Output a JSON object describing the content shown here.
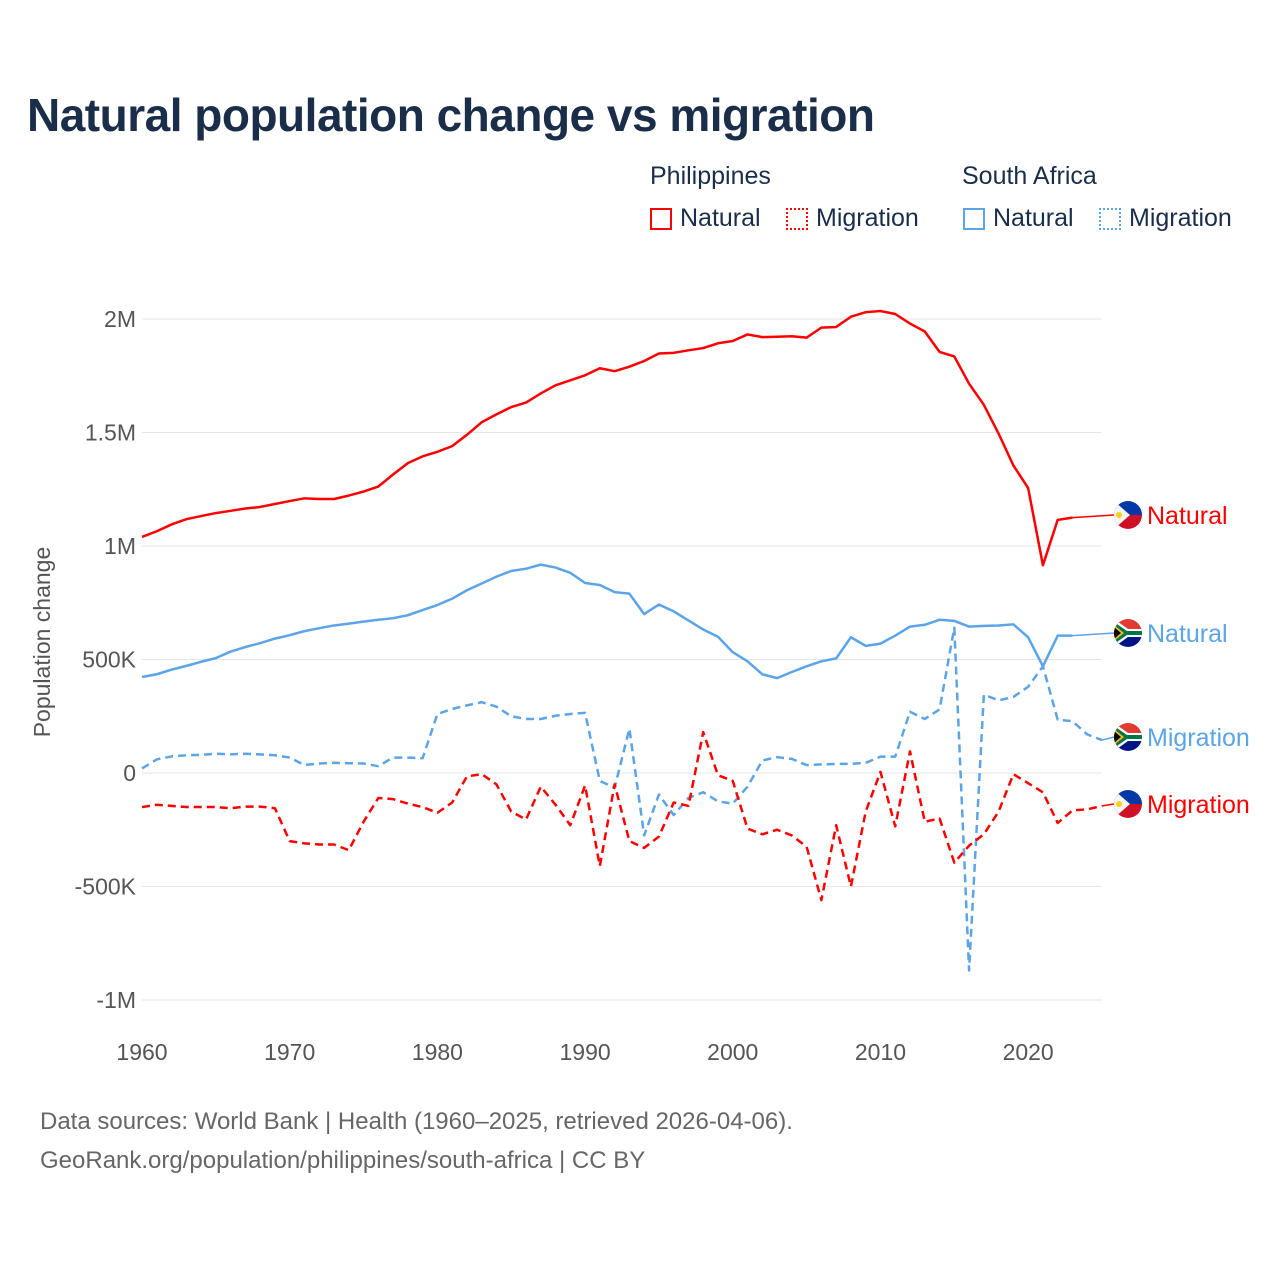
{
  "title": "Natural population change vs migration",
  "legend": {
    "groups": [
      {
        "name": "Philippines",
        "color": "#ff0000"
      },
      {
        "name": "South Africa",
        "color": "#5ba4e8"
      }
    ],
    "items": [
      "Natural",
      "Migration"
    ]
  },
  "footer": {
    "line1": "Data sources: World Bank | Health (1960–2025, retrieved 2026-04-06).",
    "line2": "GeoRank.org/population/philippines/south-africa | CC BY"
  },
  "chart_data": {
    "type": "line",
    "title": "Natural population change vs migration",
    "xlabel": "",
    "ylabel": "Population change",
    "xlim": [
      1960,
      2025
    ],
    "ylim": [
      -1000000,
      2000000
    ],
    "yticks": [
      {
        "v": 2000000,
        "l": "2M"
      },
      {
        "v": 1500000,
        "l": "1.5M"
      },
      {
        "v": 1000000,
        "l": "1M"
      },
      {
        "v": 500000,
        "l": "500K"
      },
      {
        "v": 0,
        "l": "0"
      },
      {
        "v": -500000,
        "l": "-500K"
      },
      {
        "v": -1000000,
        "l": "-1M"
      }
    ],
    "xticks": [
      1960,
      1970,
      1980,
      1990,
      2000,
      2010,
      2020
    ],
    "grid": true,
    "series": [
      {
        "name": "Philippines Natural",
        "label": "Natural",
        "color": "#ff0000",
        "dash": false,
        "start": 1960,
        "flag": "ph",
        "values_k": [
          1040,
          1065,
          1095,
          1118,
          1132,
          1145,
          1155,
          1165,
          1172,
          1185,
          1198,
          1210,
          1207,
          1207,
          1222,
          1240,
          1262,
          1315,
          1365,
          1395,
          1415,
          1440,
          1490,
          1545,
          1580,
          1612,
          1632,
          1672,
          1708,
          1730,
          1752,
          1783,
          1770,
          1790,
          1815,
          1848,
          1851,
          1862,
          1872,
          1893,
          1903,
          1932,
          1920,
          1922,
          1924,
          1918,
          1962,
          1965,
          2010,
          2030,
          2035,
          2022,
          1980,
          1945,
          1855,
          1835,
          1715,
          1622,
          1495,
          1355,
          1255,
          915,
          1115,
          1125
        ]
      },
      {
        "name": "South Africa Natural",
        "label": "Natural",
        "color": "#5ba4e8",
        "dash": false,
        "start": 1960,
        "flag": "za",
        "values_k": [
          423,
          435,
          455,
          472,
          490,
          506,
          535,
          555,
          572,
          592,
          607,
          625,
          638,
          650,
          658,
          667,
          675,
          682,
          695,
          718,
          740,
          768,
          805,
          835,
          865,
          890,
          900,
          918,
          905,
          882,
          837,
          828,
          797,
          790,
          700,
          742,
          712,
          672,
          632,
          600,
          532,
          492,
          435,
          418,
          445,
          470,
          492,
          505,
          598,
          560,
          570,
          605,
          645,
          653,
          675,
          670,
          645,
          648,
          650,
          655,
          598,
          470,
          605,
          605
        ]
      },
      {
        "name": "South Africa Migration",
        "label": "Migration",
        "color": "#5ba4e8",
        "dash": true,
        "start": 1960,
        "flag": "za",
        "values_k": [
          20,
          60,
          73,
          78,
          80,
          85,
          82,
          85,
          82,
          78,
          68,
          35,
          42,
          45,
          43,
          42,
          30,
          68,
          68,
          65,
          260,
          282,
          298,
          312,
          292,
          250,
          238,
          238,
          252,
          260,
          265,
          -35,
          -65,
          195,
          -275,
          -95,
          -185,
          -110,
          -85,
          -125,
          -135,
          -60,
          55,
          70,
          62,
          35,
          38,
          40,
          40,
          45,
          72,
          72,
          270,
          238,
          280,
          640,
          -870,
          345,
          320,
          335,
          380,
          470,
          235,
          228,
          170,
          145
        ]
      },
      {
        "name": "Philippines Migration",
        "label": "Migration",
        "color": "#ff0000",
        "dash": true,
        "start": 1960,
        "flag": "ph",
        "values_k": [
          -150,
          -140,
          -145,
          -150,
          -150,
          -150,
          -155,
          -148,
          -148,
          -155,
          -300,
          -310,
          -315,
          -315,
          -340,
          -215,
          -110,
          -115,
          -135,
          -150,
          -175,
          -130,
          -15,
          -5,
          -50,
          -170,
          -205,
          -60,
          -140,
          -230,
          -55,
          -410,
          -50,
          -300,
          -330,
          -280,
          -130,
          -145,
          180,
          -10,
          -35,
          -245,
          -270,
          -250,
          -275,
          -325,
          -560,
          -230,
          -500,
          -170,
          5,
          -235,
          95,
          -215,
          -200,
          -395,
          -320,
          -270,
          -170,
          -5,
          -45,
          -85,
          -220,
          -165,
          -160,
          -145
        ]
      }
    ]
  }
}
